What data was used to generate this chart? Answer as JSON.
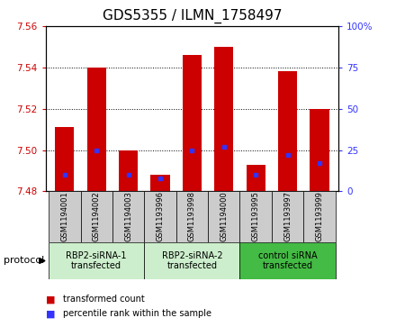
{
  "title": "GDS5355 / ILMN_1758497",
  "samples": [
    "GSM1194001",
    "GSM1194002",
    "GSM1194003",
    "GSM1193996",
    "GSM1193998",
    "GSM1194000",
    "GSM1193995",
    "GSM1193997",
    "GSM1193999"
  ],
  "red_values": [
    7.511,
    7.54,
    7.5,
    7.488,
    7.546,
    7.55,
    7.493,
    7.538,
    7.52
  ],
  "blue_values_pct": [
    10,
    25,
    10,
    8,
    25,
    27,
    10,
    22,
    17
  ],
  "y_min": 7.48,
  "y_max": 7.56,
  "y_ticks": [
    7.48,
    7.5,
    7.52,
    7.54,
    7.56
  ],
  "y2_ticks": [
    0,
    25,
    50,
    75,
    100
  ],
  "groups": [
    {
      "label": "RBP2-siRNA-1\ntransfected",
      "start": 0,
      "end": 3
    },
    {
      "label": "RBP2-siRNA-2\ntransfected",
      "start": 3,
      "end": 6
    },
    {
      "label": "control siRNA\ntransfected",
      "start": 6,
      "end": 9
    }
  ],
  "group_colors": [
    "#cceecc",
    "#cceecc",
    "#44bb44"
  ],
  "bar_width": 0.6,
  "bar_color_red": "#cc0000",
  "bar_color_blue": "#3333ff",
  "sample_bg_color": "#cccccc",
  "protocol_label": "protocol",
  "legend_red": "transformed count",
  "legend_blue": "percentile rank within the sample",
  "title_fontsize": 11,
  "axis_label_color_left": "#cc0000",
  "axis_label_color_right": "#3333ff"
}
